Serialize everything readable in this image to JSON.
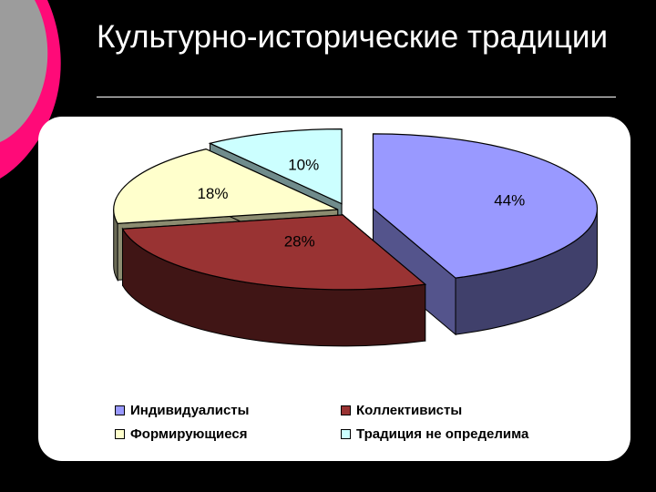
{
  "slide": {
    "title": "Культурно-исторические традиции",
    "accent_colors": {
      "gray": "#9c9c9c",
      "pink": "#ff0a78"
    }
  },
  "chart_data": {
    "type": "pie",
    "three_d": true,
    "title": "",
    "labels": [
      "Индивидуалисты",
      "Коллективисты",
      "Формирующиеся",
      "Традиция не определима"
    ],
    "values": [
      44,
      28,
      18,
      10
    ],
    "value_labels": [
      "44%",
      "28%",
      "18%",
      "10%"
    ],
    "colors": [
      "#9999ff",
      "#993333",
      "#ffffcc",
      "#ccffff"
    ],
    "exploded": true,
    "legend_position": "bottom"
  }
}
